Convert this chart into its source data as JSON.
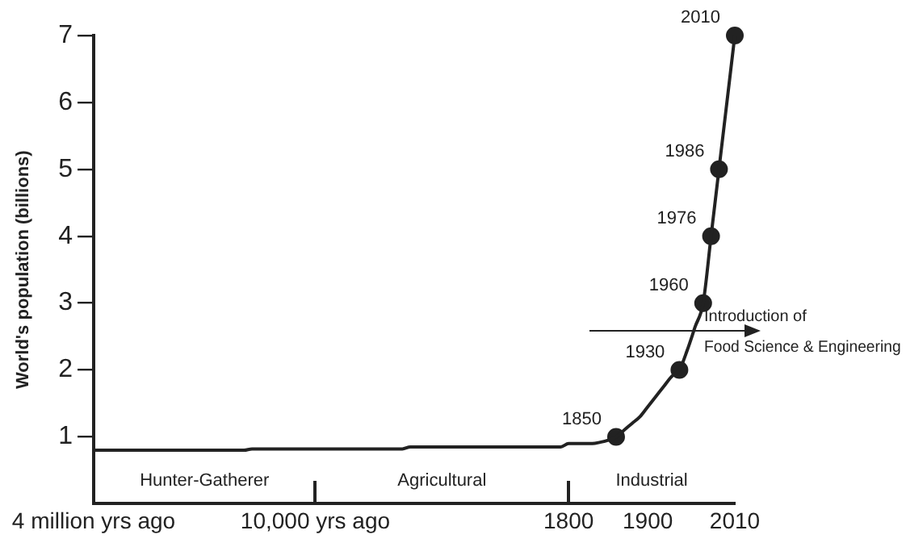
{
  "chart_data": {
    "type": "line",
    "ylabel": "World's population (billions)",
    "categories": [
      "4 million yrs ago",
      null,
      null,
      null,
      null,
      null,
      null,
      null,
      null,
      null,
      null,
      null,
      null,
      null,
      null,
      null,
      null,
      null,
      null,
      null,
      null,
      null,
      null,
      null,
      null,
      null,
      null,
      null,
      "10,000 yrs ago",
      null,
      null,
      null,
      null,
      null,
      null,
      null,
      null,
      null,
      null,
      null,
      null,
      null,
      null,
      null,
      null,
      null,
      null,
      null,
      null,
      null,
      null,
      null,
      null,
      null,
      null,
      null,
      null,
      null,
      null,
      null,
      "1800",
      null,
      null,
      null,
      null,
      null,
      null,
      null,
      null,
      null,
      "1900",
      null,
      null,
      null,
      null,
      null,
      null,
      null,
      null,
      null,
      null,
      "2010"
    ],
    "series": [
      {
        "type": "line",
        "color": "#222222",
        "marker": "none",
        "values": [
          0.8,
          0.8,
          0.8,
          0.8,
          0.8,
          0.8,
          0.8,
          0.8,
          0.8,
          0.8,
          0.8,
          0.8,
          0.8,
          0.8,
          0.8,
          0.8,
          0.8,
          0.8,
          0.8,
          0.8,
          0.82,
          0.82,
          0.82,
          0.82,
          0.82,
          0.82,
          0.82,
          0.82,
          0.82,
          0.82,
          0.82,
          0.82,
          0.82,
          0.82,
          0.82,
          0.82,
          0.82,
          0.82,
          0.82,
          0.82,
          0.85,
          0.85,
          0.85,
          0.85,
          0.85,
          0.85,
          0.85,
          0.85,
          0.85,
          0.85,
          0.85,
          0.85,
          0.85,
          0.85,
          0.85,
          0.85,
          0.85,
          0.85,
          0.85,
          0.85,
          0.9,
          0.9,
          0.9,
          0.9,
          0.92,
          0.95,
          1.0,
          1.1,
          1.2,
          1.3,
          1.45,
          1.6,
          1.75,
          1.9,
          2.0,
          2.3,
          2.65,
          3.0,
          4.0,
          5.0,
          6.0,
          7.0
        ]
      },
      {
        "type": "scatter",
        "color": "#222222",
        "marker": "circle",
        "values": [
          null,
          null,
          null,
          null,
          null,
          null,
          null,
          null,
          null,
          null,
          null,
          null,
          null,
          null,
          null,
          null,
          null,
          null,
          null,
          null,
          null,
          null,
          null,
          null,
          null,
          null,
          null,
          null,
          null,
          null,
          null,
          null,
          null,
          null,
          null,
          null,
          null,
          null,
          null,
          null,
          null,
          null,
          null,
          null,
          null,
          null,
          null,
          null,
          null,
          null,
          null,
          null,
          null,
          null,
          null,
          null,
          null,
          null,
          null,
          null,
          null,
          null,
          null,
          null,
          null,
          null,
          1.0,
          null,
          null,
          null,
          null,
          null,
          null,
          null,
          2.0,
          null,
          null,
          3.0,
          4.0,
          5.0,
          null,
          7.0
        ]
      }
    ],
    "ylim": [
      0,
      7
    ],
    "yticks": [
      1,
      2,
      3,
      4,
      5,
      6,
      7
    ],
    "annotations": [
      "1850",
      "1930",
      "1960",
      "1976",
      "1986",
      "2010",
      "Hunter-Gatherer",
      "Agricultural",
      "Industrial",
      "Introduction of Food Science & Engineering"
    ],
    "grid": false,
    "legend": false
  }
}
